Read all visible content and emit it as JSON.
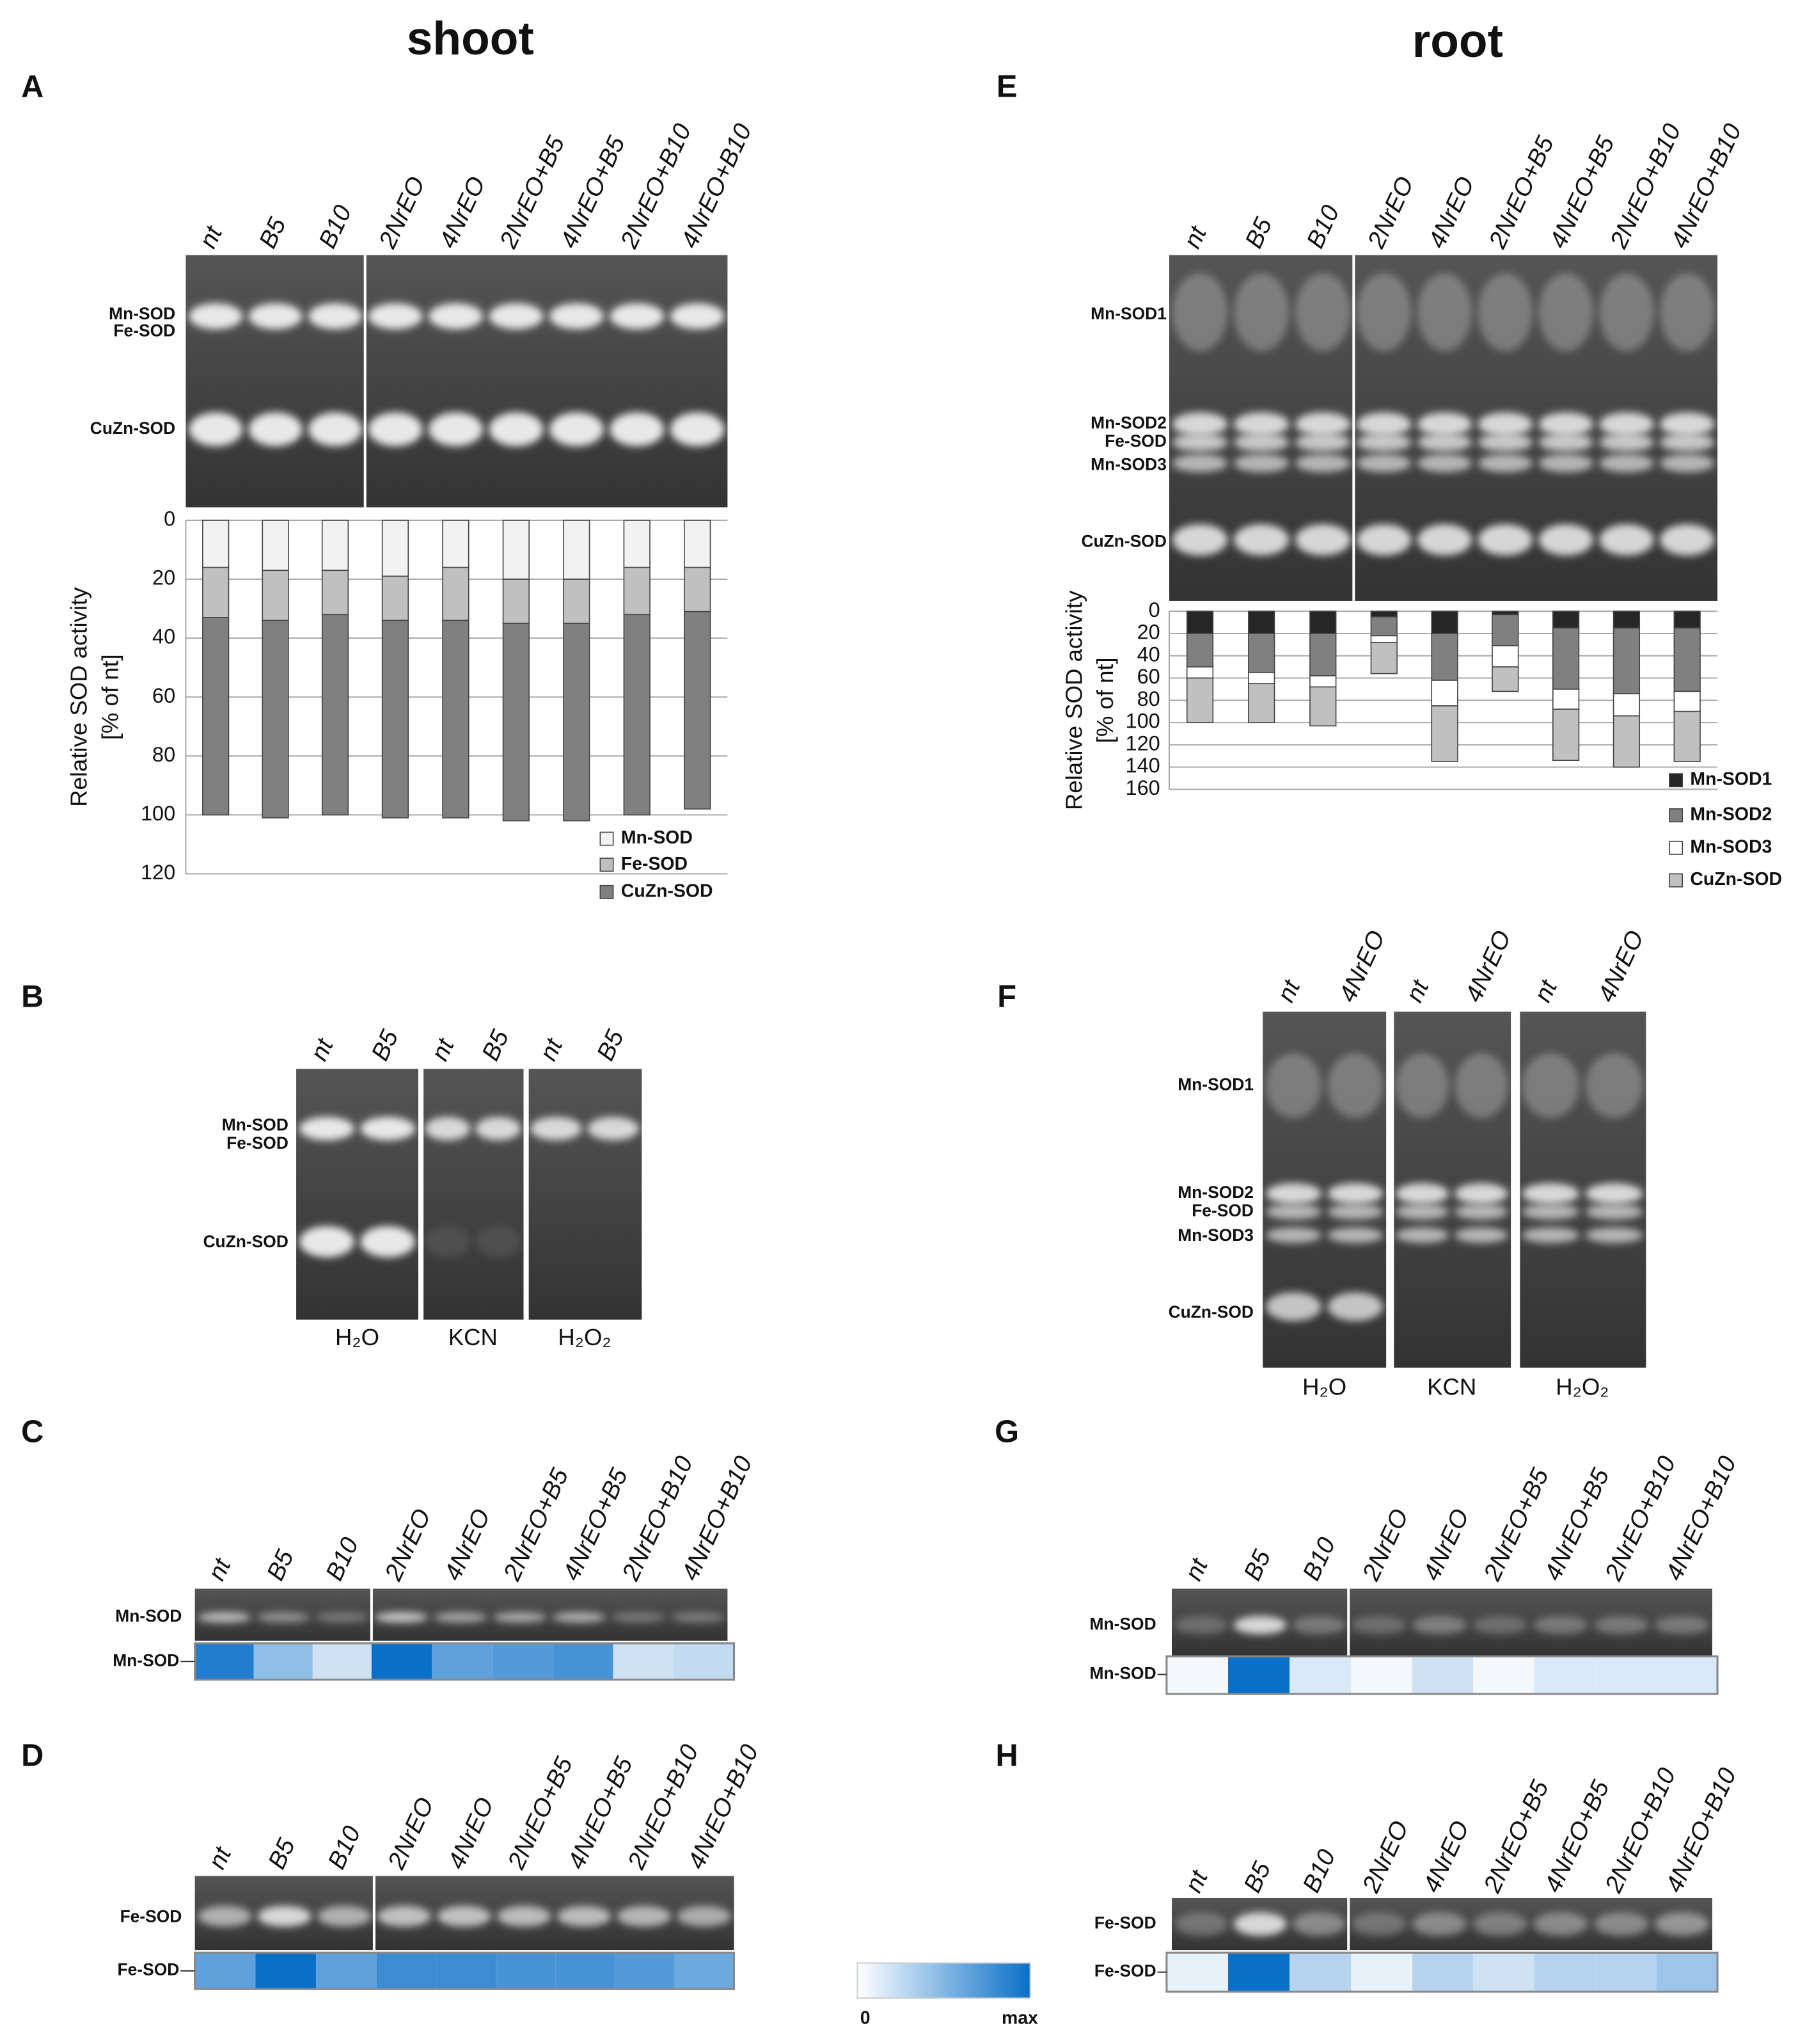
{
  "columns": [
    "shoot",
    "root"
  ],
  "panels": [
    {
      "letter": "A",
      "band_labels": [
        "Mn-SOD",
        "Fe-SOD",
        "CuZn-SOD"
      ]
    },
    {
      "letter": "B",
      "lanes": [
        "nt",
        "B5",
        "nt",
        "B5",
        "nt",
        "B5"
      ],
      "band_labels": [
        "Mn-SOD",
        "Fe-SOD",
        "CuZn-SOD"
      ],
      "treatments": [
        "H₂O",
        "KCN",
        "H₂O₂"
      ]
    },
    {
      "letter": "C",
      "lanes": [
        "nt",
        "B5",
        "B10",
        "2NrEO",
        "4NrEO",
        "2NrEO+B5",
        "4NrEO+B5",
        "2NrEO+B10",
        "4NrEO+B10"
      ],
      "band_labels": [
        "Mn-SOD"
      ],
      "heatmap": {
        "label": "Mn-SOD",
        "values": [
          0.9,
          0.45,
          0.2,
          1.0,
          0.65,
          0.7,
          0.75,
          0.2,
          0.25
        ]
      }
    },
    {
      "letter": "D",
      "lanes": [
        "nt",
        "B5",
        "B10",
        "2NrEO",
        "4NrEO",
        "2NrEO+B5",
        "4NrEO+B5",
        "2NrEO+B10",
        "4NrEO+B10"
      ],
      "band_labels": [
        "Fe-SOD"
      ],
      "heatmap": {
        "label": "Fe-SOD",
        "values": [
          0.65,
          1.0,
          0.65,
          0.8,
          0.8,
          0.75,
          0.75,
          0.7,
          0.6
        ]
      }
    },
    {
      "letter": "E",
      "band_labels": [
        "Mn-SOD1",
        "Mn-SOD2",
        "Fe-SOD",
        "Mn-SOD3",
        "CuZn-SOD"
      ]
    },
    {
      "letter": "F",
      "lanes": [
        "nt",
        "4NrEO",
        "nt",
        "4NrEO",
        "nt",
        "4NrEO"
      ],
      "band_labels": [
        "Mn-SOD1",
        "Mn-SOD2",
        "Fe-SOD",
        "Mn-SOD3",
        "CuZn-SOD"
      ],
      "treatments": [
        "H₂O",
        "KCN",
        "H₂O₂"
      ]
    },
    {
      "letter": "G",
      "lanes": [
        "nt",
        "B5",
        "B10",
        "2NrEO",
        "4NrEO",
        "2NrEO+B5",
        "4NrEO+B5",
        "2NrEO+B10",
        "4NrEO+B10"
      ],
      "band_labels": [
        "Mn-SOD"
      ],
      "heatmap": {
        "label": "Mn-SOD",
        "values": [
          0.05,
          1.0,
          0.15,
          0.05,
          0.2,
          0.05,
          0.15,
          0.15,
          0.15
        ]
      }
    },
    {
      "letter": "H",
      "lanes": [
        "nt",
        "B5",
        "B10",
        "2NrEO",
        "4NrEO",
        "2NrEO+B5",
        "4NrEO+B5",
        "2NrEO+B10",
        "4NrEO+B10"
      ],
      "band_labels": [
        "Fe-SOD"
      ],
      "heatmap": {
        "label": "Fe-SOD",
        "values": [
          0.1,
          1.0,
          0.3,
          0.1,
          0.3,
          0.2,
          0.3,
          0.3,
          0.4
        ]
      }
    }
  ],
  "colorbar": {
    "labels": [
      "0",
      "max"
    ],
    "colors": [
      "#ffffff",
      "#0a6fc8"
    ]
  },
  "chart_data": [
    {
      "type": "bar",
      "stacked": true,
      "y_inverted": true,
      "grid": true,
      "legend": "lower right",
      "categories": [
        "nt",
        "B5",
        "B10",
        "2NrEO",
        "4NrEO",
        "2NrEO+B5",
        "4NrEO+B5",
        "2NrEO+B10",
        "4NrEO+B10"
      ],
      "ylabel": [
        "Relative SOD activity",
        "[% of nt]"
      ],
      "ylim": [
        0,
        120
      ],
      "yticks": [
        0,
        20,
        40,
        60,
        80,
        100,
        120
      ],
      "series": [
        {
          "name": "Mn-SOD",
          "color": "#f2f2f2",
          "values": [
            16,
            17,
            17,
            19,
            16,
            20,
            20,
            16,
            16
          ]
        },
        {
          "name": "Fe-SOD",
          "color": "#c0c0c0",
          "values": [
            17,
            17,
            15,
            15,
            18,
            15,
            15,
            16,
            15
          ]
        },
        {
          "name": "CuZn-SOD",
          "color": "#808080",
          "values": [
            67,
            67,
            68,
            67,
            67,
            67,
            67,
            68,
            67
          ]
        }
      ]
    },
    {
      "type": "bar",
      "stacked": true,
      "y_inverted": true,
      "grid": true,
      "legend": "lower right",
      "categories": [
        "nt",
        "B5",
        "B10",
        "2NrEO",
        "4NrEO",
        "2NrEO+B5",
        "4NrEO+B5",
        "2NrEO+B10",
        "4NrEO+B10"
      ],
      "ylabel": [
        "Relative SOD activity",
        "[% of nt]"
      ],
      "ylim": [
        0,
        160
      ],
      "yticks": [
        0,
        20,
        40,
        60,
        80,
        100,
        120,
        140,
        160
      ],
      "series": [
        {
          "name": "Mn-SOD1",
          "color": "#262626",
          "values": [
            20,
            20,
            20,
            5,
            20,
            3,
            15,
            15,
            15
          ]
        },
        {
          "name": "Mn-SOD2",
          "color": "#808080",
          "values": [
            30,
            35,
            38,
            17,
            42,
            28,
            55,
            59,
            57
          ]
        },
        {
          "name": "Mn-SOD3",
          "color": "#ffffff",
          "values": [
            10,
            10,
            10,
            6,
            23,
            19,
            18,
            20,
            18
          ]
        },
        {
          "name": "CuZn-SOD",
          "color": "#c0c0c0",
          "values": [
            40,
            35,
            35,
            28,
            50,
            22,
            46,
            46,
            45
          ]
        }
      ]
    }
  ]
}
